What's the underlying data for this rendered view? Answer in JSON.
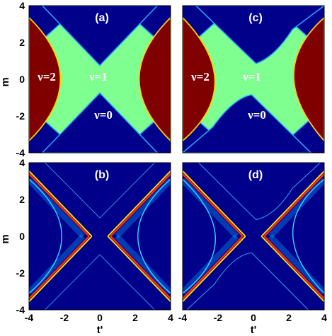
{
  "chart_data": [
    {
      "type": "heatmap",
      "panel_label": "(a)",
      "ylabel": "m",
      "xlabel": "",
      "xlim": [
        -4,
        4
      ],
      "ylim": [
        -4,
        4
      ],
      "xticks": [],
      "yticks": [
        "-4",
        "-2",
        "0",
        "2",
        "4"
      ],
      "colors": {
        "nu0": "#00008b",
        "nu1": "#7fff8f",
        "nu2": "#800000"
      },
      "regions": [
        {
          "label": "ν=2",
          "x": -3.0,
          "y": 0.2
        },
        {
          "label": "ν=1",
          "x": -0.1,
          "y": 0.2
        },
        {
          "label": "ν=0",
          "x": 0.2,
          "y": -2.0
        }
      ]
    },
    {
      "type": "heatmap",
      "panel_label": "(c)",
      "ylabel": "",
      "xlabel": "",
      "xlim": [
        -4,
        4
      ],
      "ylim": [
        -4,
        4
      ],
      "xticks": [],
      "yticks": [],
      "colors": {
        "nu0": "#00008b",
        "nu1": "#7fff8f",
        "nu2": "#800000"
      },
      "regions": [
        {
          "label": "ν=2",
          "x": -3.0,
          "y": 0.2
        },
        {
          "label": "ν=1",
          "x": -0.1,
          "y": 0.2
        },
        {
          "label": "ν=0",
          "x": 0.2,
          "y": -2.0
        }
      ]
    },
    {
      "type": "heatmap",
      "panel_label": "(b)",
      "ylabel": "m",
      "xlabel": "t'",
      "xlim": [
        -4,
        4
      ],
      "ylim": [
        -4,
        4
      ],
      "xticks": [
        "-4",
        "-2",
        "0",
        "2",
        "4"
      ],
      "yticks": [
        "-4",
        "-2",
        "0",
        "2",
        "4"
      ]
    },
    {
      "type": "heatmap",
      "panel_label": "(d)",
      "ylabel": "",
      "xlabel": "t'",
      "xlim": [
        -4,
        4
      ],
      "ylim": [
        -4,
        4
      ],
      "xticks": [
        "-4",
        "-2",
        "0",
        "2",
        "4"
      ],
      "yticks": []
    }
  ]
}
